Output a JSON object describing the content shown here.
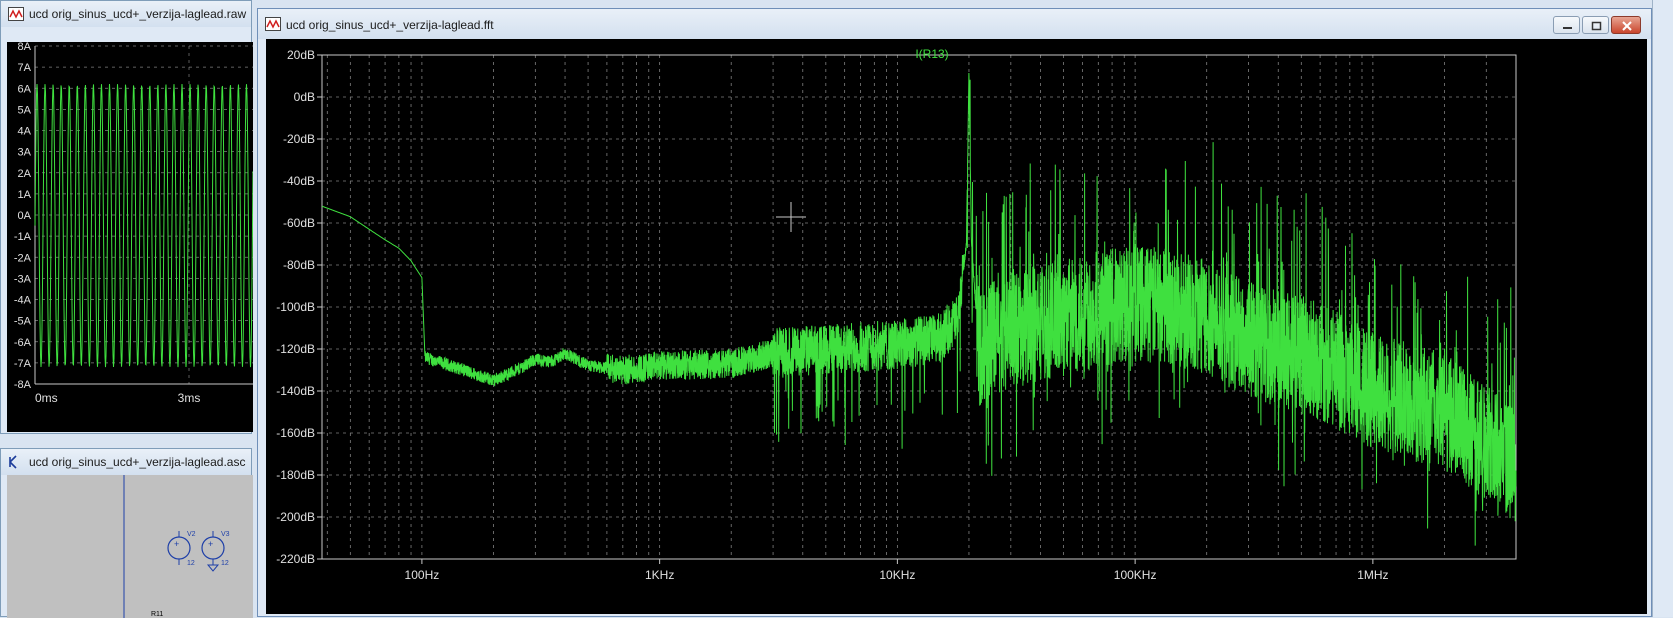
{
  "raw_window": {
    "title": "ucd orig_sinus_ucd+_verzija-laglead.raw",
    "y_ticks": [
      "8A",
      "7A",
      "6A",
      "5A",
      "4A",
      "3A",
      "2A",
      "1A",
      "0A",
      "-1A",
      "-2A",
      "-3A",
      "-4A",
      "-5A",
      "-6A",
      "-7A",
      "-8A"
    ],
    "x_ticks": [
      "0ms",
      "3ms"
    ]
  },
  "schematic_window": {
    "title": "ucd orig_sinus_ucd+_verzija-laglead.asc",
    "labels": [
      "V2",
      "V3",
      "12",
      "12",
      "R11"
    ]
  },
  "fft_window": {
    "title": "ucd orig_sinus_ucd+_verzija-laglead.fft",
    "trace_label": "I(R13)",
    "trace_color": "#3fe03f",
    "grid_color": "#808080",
    "buttons": {
      "minimize": "minimize",
      "maximize": "maximize",
      "close": "close"
    }
  },
  "chart_data": {
    "type": "line",
    "title": "I(R13)",
    "x_scale": "log",
    "xlim": [
      38,
      4000000
    ],
    "ylim": [
      -220,
      20
    ],
    "x_ticks": [
      {
        "value": 100,
        "label": "100Hz"
      },
      {
        "value": 1000,
        "label": "1KHz"
      },
      {
        "value": 10000,
        "label": "10KHz"
      },
      {
        "value": 100000,
        "label": "100KHz"
      },
      {
        "value": 1000000,
        "label": "1MHz"
      }
    ],
    "y_ticks": [
      {
        "value": 20,
        "label": "20dB"
      },
      {
        "value": 0,
        "label": "0dB"
      },
      {
        "value": -20,
        "label": "-20dB"
      },
      {
        "value": -40,
        "label": "-40dB"
      },
      {
        "value": -60,
        "label": "-60dB"
      },
      {
        "value": -80,
        "label": "-80dB"
      },
      {
        "value": -100,
        "label": "-100dB"
      },
      {
        "value": -120,
        "label": "-120dB"
      },
      {
        "value": -140,
        "label": "-140dB"
      },
      {
        "value": -160,
        "label": "-160dB"
      },
      {
        "value": -180,
        "label": "-180dB"
      },
      {
        "value": -200,
        "label": "-200dB"
      },
      {
        "value": -220,
        "label": "-220dB"
      }
    ],
    "grid": true,
    "series": [
      {
        "name": "I(R13)",
        "x": [
          38,
          50,
          60,
          70,
          80,
          90,
          100,
          103,
          150,
          200,
          250,
          300,
          350,
          400,
          500,
          700,
          1000,
          2000,
          3000,
          5000,
          10000,
          15000,
          18000,
          19500,
          20000,
          20500,
          22000,
          30000,
          50000,
          80000,
          100000,
          150000,
          200000,
          300000,
          400000,
          500000,
          700000,
          1000000,
          2000000,
          3000000,
          4000000
        ],
        "y": [
          -52,
          -57,
          -63,
          -68,
          -72,
          -78,
          -86,
          -124,
          -130,
          -135,
          -130,
          -125,
          -126,
          -122,
          -128,
          -130,
          -128,
          -127,
          -122,
          -120,
          -118,
          -115,
          -105,
          -70,
          12,
          -70,
          -120,
          -110,
          -105,
          -100,
          -98,
          -100,
          -105,
          -115,
          -120,
          -122,
          -130,
          -140,
          -150,
          -165,
          -175
        ]
      }
    ]
  }
}
